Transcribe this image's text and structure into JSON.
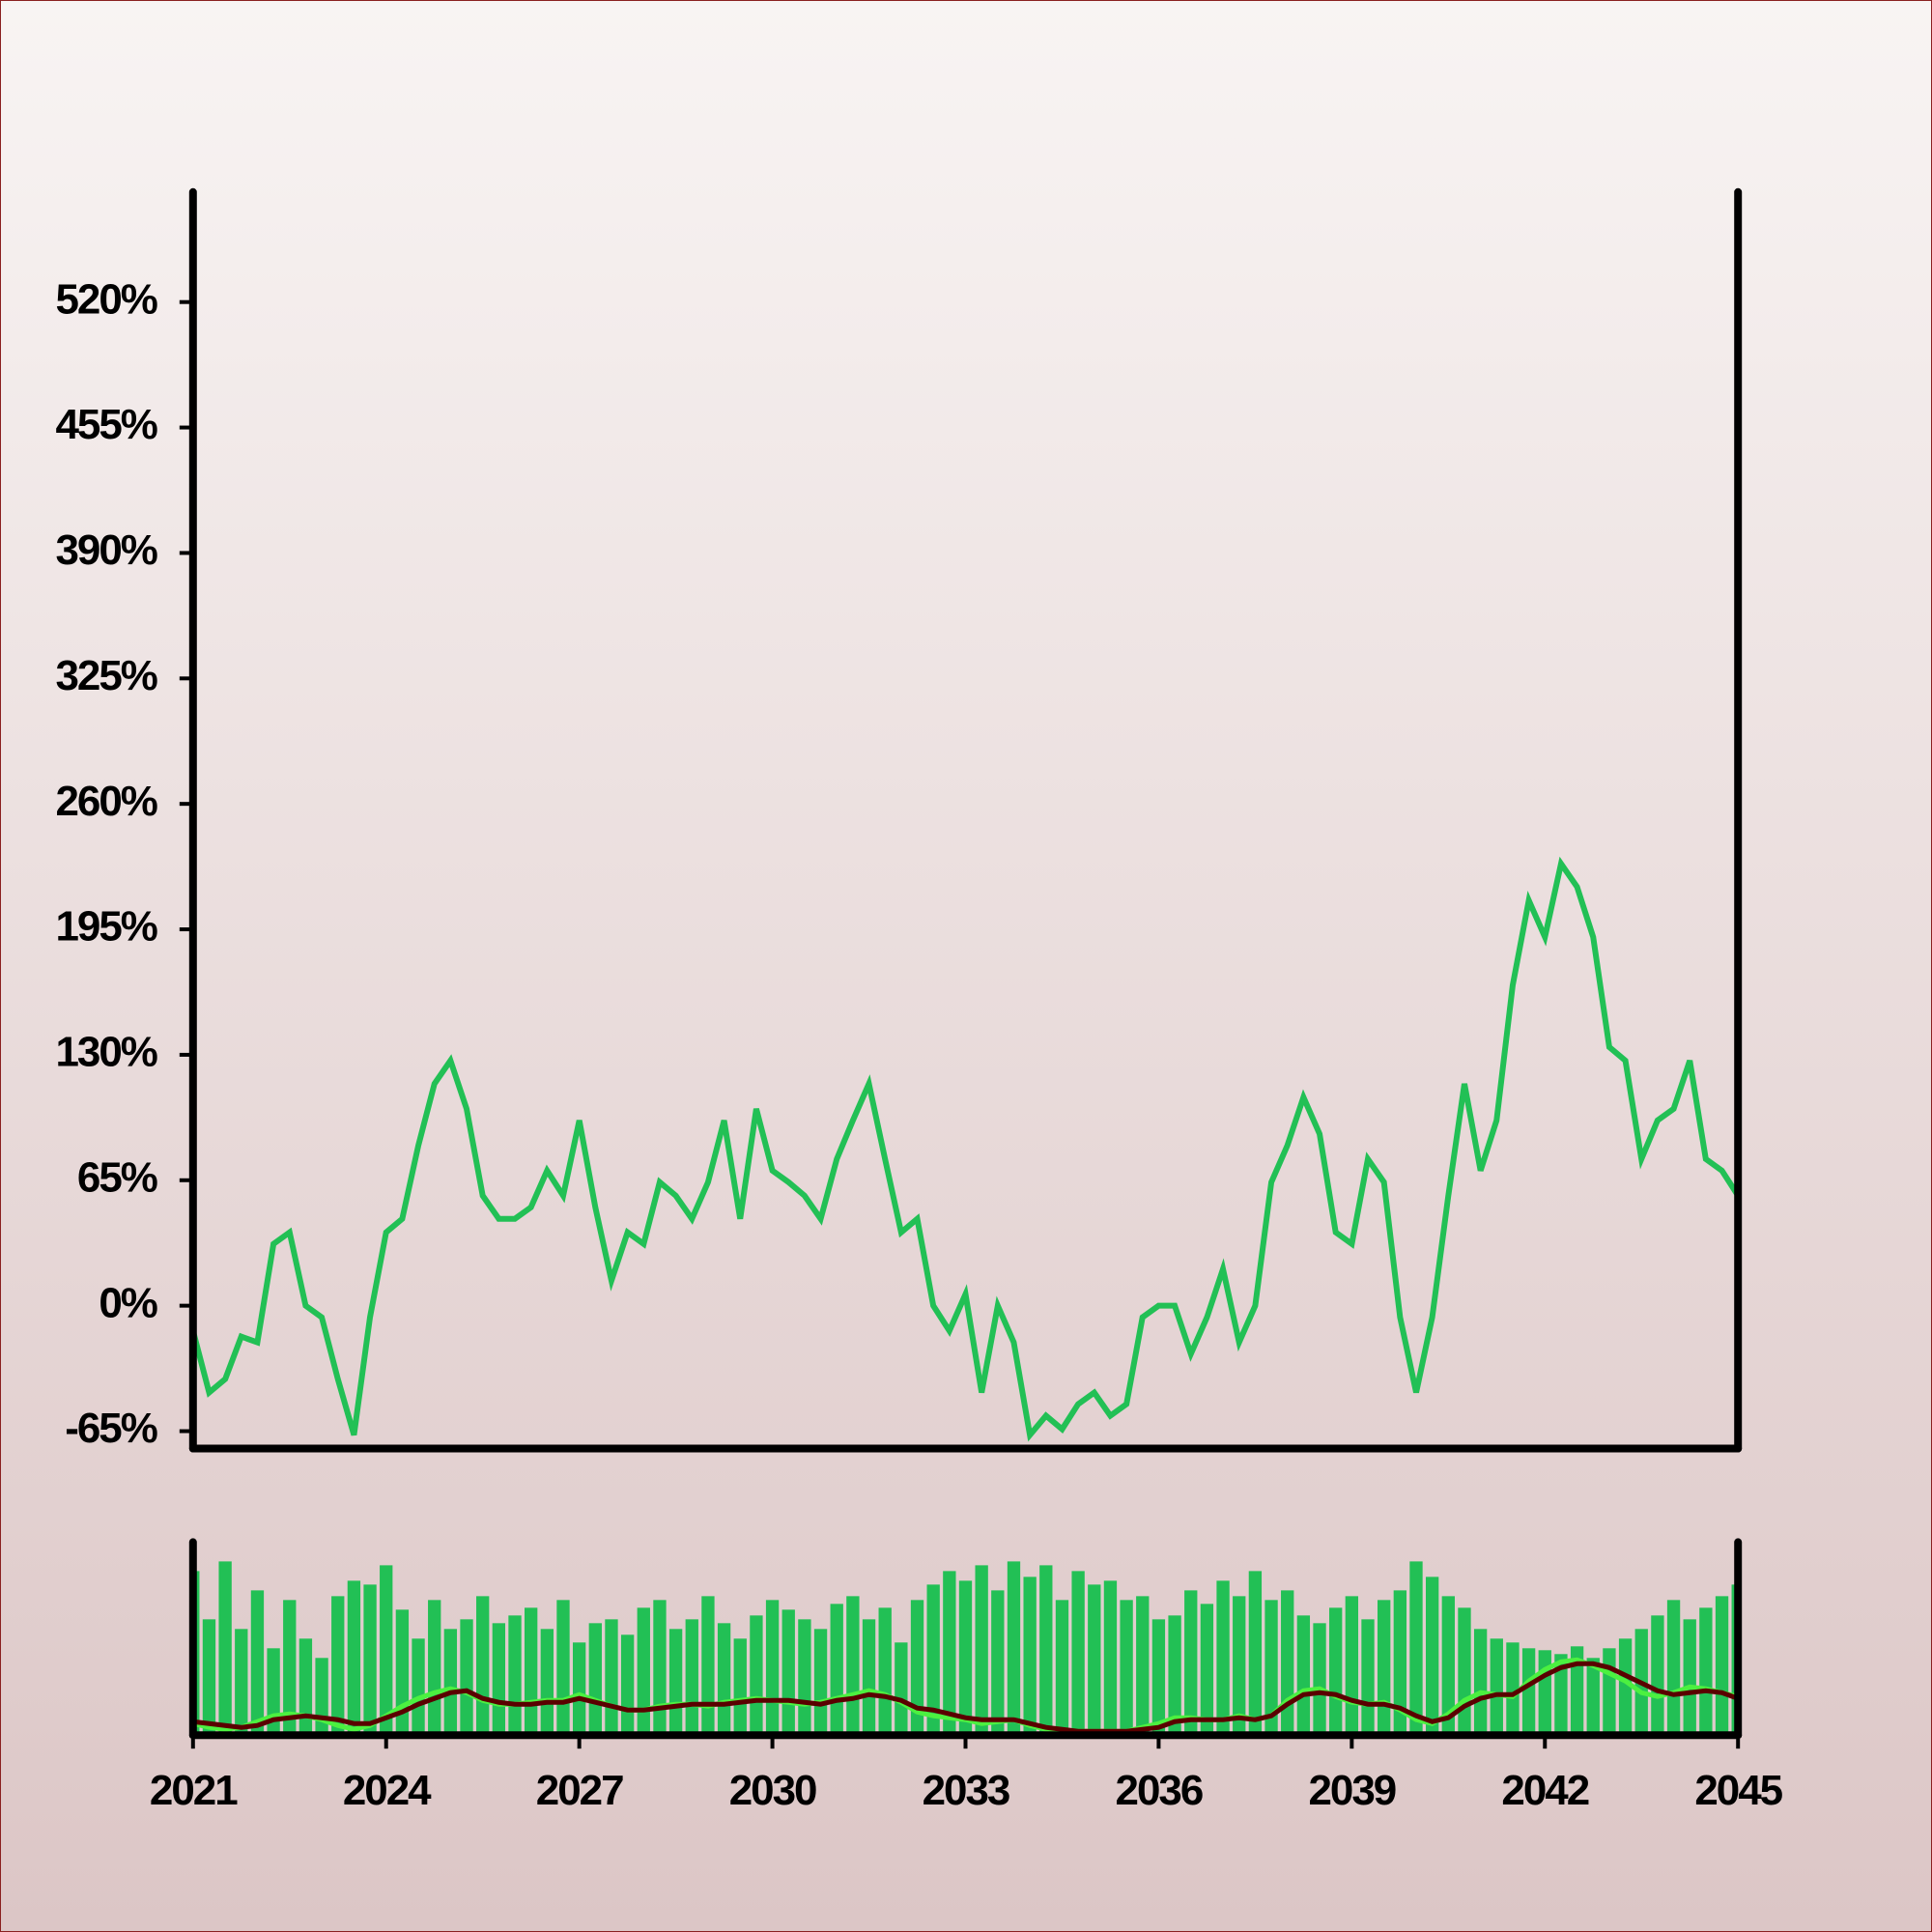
{
  "chart_data": [
    {
      "type": "line",
      "color": "#22c055",
      "x": [
        2021,
        2021.25,
        2021.5,
        2021.75,
        2022,
        2022.25,
        2022.5,
        2022.75,
        2023,
        2023.25,
        2023.5,
        2023.75,
        2024,
        2024.25,
        2024.5,
        2024.75,
        2025,
        2025.25,
        2025.5,
        2025.75,
        2026,
        2026.25,
        2026.5,
        2026.75,
        2027,
        2027.25,
        2027.5,
        2027.75,
        2028,
        2028.25,
        2028.5,
        2028.75,
        2029,
        2029.25,
        2029.5,
        2029.75,
        2030,
        2030.25,
        2030.5,
        2030.75,
        2031,
        2031.25,
        2031.5,
        2031.75,
        2032,
        2032.25,
        2032.5,
        2032.75,
        2033,
        2033.25,
        2033.5,
        2033.75,
        2034,
        2034.25,
        2034.5,
        2034.75,
        2035,
        2035.25,
        2035.5,
        2035.75,
        2036,
        2036.25,
        2036.5,
        2036.75,
        2037,
        2037.25,
        2037.5,
        2037.75,
        2038,
        2038.25,
        2038.5,
        2038.75,
        2039,
        2039.25,
        2039.5,
        2039.75,
        2040,
        2040.25,
        2040.5,
        2040.75,
        2041,
        2041.25,
        2041.5,
        2041.75,
        2042,
        2042.25,
        2042.5,
        2042.75,
        2043,
        2043.25,
        2043.5,
        2043.75,
        2044,
        2044.25,
        2044.5,
        2044.75,
        2045
      ],
      "values": [
        -13,
        -45,
        -38,
        -16,
        -19,
        32,
        38,
        0,
        -6,
        -38,
        -67,
        -6,
        38,
        45,
        83,
        115,
        127,
        102,
        57,
        45,
        45,
        51,
        70,
        57,
        96,
        51,
        13,
        38,
        32,
        64,
        57,
        45,
        64,
        96,
        45,
        102,
        70,
        64,
        57,
        45,
        76,
        96,
        115,
        76,
        38,
        45,
        0,
        -13,
        6,
        -45,
        0,
        -19,
        -67,
        -57,
        -64,
        -51,
        -45,
        -57,
        -51,
        -6,
        0,
        0,
        -25,
        -6,
        19,
        -19,
        0,
        64,
        83,
        108,
        89,
        38,
        32,
        76,
        64,
        -6,
        -45,
        -6,
        57,
        115,
        70,
        96,
        166,
        210,
        191,
        229,
        217,
        191,
        134,
        127,
        76,
        96,
        102,
        127,
        76,
        70,
        57
      ],
      "xlim": [
        2021,
        2045
      ],
      "ylim": [
        -74,
        577
      ],
      "yticks": [
        {
          "value": -65,
          "label": "-65%"
        },
        {
          "value": 0,
          "label": "0%"
        },
        {
          "value": 65,
          "label": "65%"
        },
        {
          "value": 130,
          "label": "130%"
        },
        {
          "value": 195,
          "label": "195%"
        },
        {
          "value": 260,
          "label": "260%"
        },
        {
          "value": 325,
          "label": "325%"
        },
        {
          "value": 390,
          "label": "390%"
        },
        {
          "value": 455,
          "label": "455%"
        },
        {
          "value": 520,
          "label": "520%"
        }
      ]
    },
    {
      "type": "bar",
      "color": "#22c055",
      "x": [
        2021,
        2021.25,
        2021.5,
        2021.75,
        2022,
        2022.25,
        2022.5,
        2022.75,
        2023,
        2023.25,
        2023.5,
        2023.75,
        2024,
        2024.25,
        2024.5,
        2024.75,
        2025,
        2025.25,
        2025.5,
        2025.75,
        2026,
        2026.25,
        2026.5,
        2026.75,
        2027,
        2027.25,
        2027.5,
        2027.75,
        2028,
        2028.25,
        2028.5,
        2028.75,
        2029,
        2029.25,
        2029.5,
        2029.75,
        2030,
        2030.25,
        2030.5,
        2030.75,
        2031,
        2031.25,
        2031.5,
        2031.75,
        2032,
        2032.25,
        2032.5,
        2032.75,
        2033,
        2033.25,
        2033.5,
        2033.75,
        2034,
        2034.25,
        2034.5,
        2034.75,
        2035,
        2035.25,
        2035.5,
        2035.75,
        2036,
        2036.25,
        2036.5,
        2036.75,
        2037,
        2037.25,
        2037.5,
        2037.75,
        2038,
        2038.25,
        2038.5,
        2038.75,
        2039,
        2039.25,
        2039.5,
        2039.75,
        2040,
        2040.25,
        2040.5,
        2040.75,
        2041,
        2041.25,
        2041.5,
        2041.75,
        2042,
        2042.25,
        2042.5,
        2042.75,
        2043,
        2043.25,
        2043.5,
        2043.75,
        2044,
        2044.25,
        2044.5,
        2044.75,
        2045
      ],
      "values": [
        85,
        60,
        90,
        55,
        75,
        45,
        70,
        50,
        40,
        72,
        80,
        78,
        88,
        65,
        50,
        70,
        55,
        60,
        72,
        58,
        62,
        66,
        55,
        70,
        48,
        58,
        60,
        52,
        66,
        70,
        55,
        60,
        72,
        58,
        50,
        62,
        70,
        65,
        60,
        55,
        68,
        72,
        60,
        66,
        48,
        70,
        78,
        85,
        80,
        88,
        75,
        90,
        82,
        88,
        70,
        85,
        78,
        80,
        70,
        72,
        60,
        62,
        75,
        68,
        80,
        72,
        85,
        70,
        75,
        62,
        58,
        66,
        72,
        60,
        70,
        75,
        90,
        82,
        72,
        66,
        55,
        50,
        48,
        45,
        44,
        42,
        46,
        40,
        45,
        50,
        55,
        62,
        70,
        60,
        66,
        72,
        78
      ],
      "overlays": [
        {
          "color": "#4cf040",
          "values": [
            6,
            4,
            3,
            4,
            7,
            10,
            11,
            10,
            8,
            5,
            3,
            5,
            10,
            15,
            19,
            22,
            24,
            22,
            18,
            16,
            16,
            17,
            18,
            18,
            21,
            18,
            15,
            13,
            13,
            15,
            16,
            16,
            15,
            17,
            18,
            19,
            18,
            17,
            16,
            17,
            19,
            21,
            23,
            21,
            17,
            12,
            10,
            9,
            8,
            6,
            7,
            8,
            5,
            3,
            2,
            2,
            2,
            2,
            2,
            4,
            6,
            9,
            9,
            8,
            8,
            10,
            8,
            10,
            18,
            23,
            24,
            20,
            17,
            16,
            17,
            13,
            8,
            6,
            11,
            18,
            22,
            21,
            20,
            28,
            34,
            38,
            39,
            36,
            32,
            28,
            22,
            20,
            22,
            25,
            24,
            22,
            20
          ]
        },
        {
          "color": "#5a0000",
          "values": [
            7,
            6,
            5,
            4,
            5,
            8,
            9,
            10,
            9,
            8,
            6,
            6,
            9,
            12,
            16,
            19,
            22,
            23,
            19,
            17,
            16,
            16,
            17,
            17,
            19,
            17,
            15,
            13,
            13,
            14,
            15,
            16,
            16,
            16,
            17,
            18,
            18,
            18,
            17,
            16,
            18,
            19,
            21,
            20,
            18,
            14,
            13,
            11,
            9,
            8,
            8,
            8,
            6,
            4,
            3,
            2,
            2,
            2,
            2,
            3,
            4,
            7,
            8,
            8,
            8,
            9,
            8,
            10,
            16,
            21,
            22,
            21,
            18,
            16,
            16,
            14,
            10,
            7,
            9,
            15,
            19,
            21,
            21,
            26,
            31,
            35,
            37,
            37,
            35,
            31,
            27,
            23,
            21,
            22,
            23,
            22,
            19
          ]
        }
      ],
      "xlim": [
        2021,
        2045
      ],
      "ylim": [
        0,
        100
      ],
      "xticks": [
        2021,
        2024,
        2027,
        2030,
        2033,
        2036,
        2039,
        2042,
        2045
      ]
    }
  ]
}
